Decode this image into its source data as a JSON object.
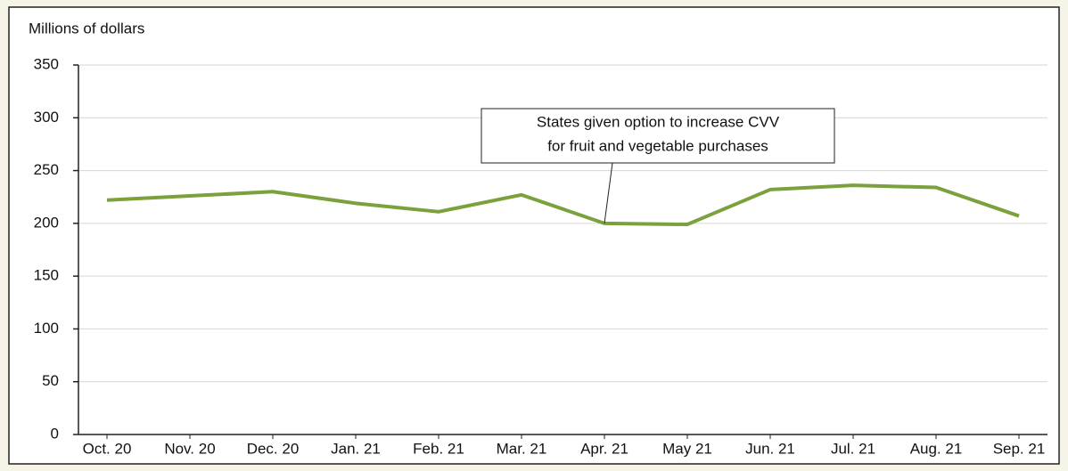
{
  "chart_data": {
    "type": "line",
    "y_axis_label": "Millions of dollars",
    "categories": [
      "Oct. 20",
      "Nov. 20",
      "Dec. 20",
      "Jan. 21",
      "Feb. 21",
      "Mar. 21",
      "Apr. 21",
      "May 21",
      "Jun. 21",
      "Jul. 21",
      "Aug. 21",
      "Sep. 21"
    ],
    "series": [
      {
        "color": "#7ba13d",
        "values": [
          222,
          226,
          230,
          219,
          211,
          227,
          200,
          199,
          232,
          236,
          234,
          207
        ]
      }
    ],
    "ylim": [
      0,
      350
    ],
    "yticks": [
      0,
      50,
      100,
      150,
      200,
      250,
      300,
      350
    ],
    "grid": true,
    "annotation": {
      "lines": [
        "States given option to increase CVV",
        "for fruit and vegetable purchases"
      ],
      "category_index": 6
    }
  }
}
